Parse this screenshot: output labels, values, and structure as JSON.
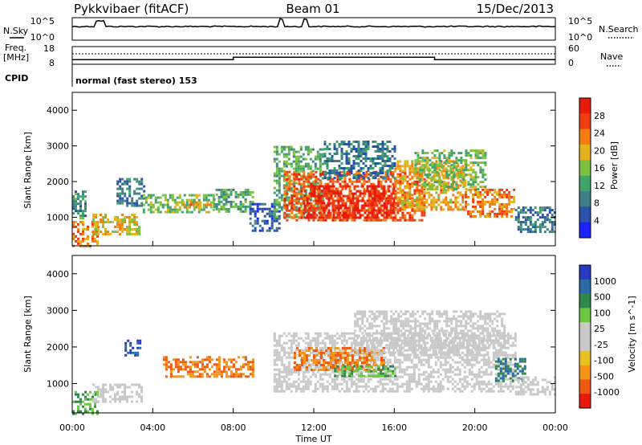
{
  "header": {
    "station": "Pykkvibaer (fitACF)",
    "beam": "Beam 01",
    "date": "15/Dec/2013"
  },
  "top_panels": {
    "nsky_label": "N.Sky",
    "nsearch_label": "N.Search",
    "nsky_ticks": [
      "10^5",
      "10^0"
    ],
    "nsearch_ticks": [
      "10^5",
      "10^0"
    ],
    "freq_label": "Freq.",
    "freq_unit": "[MHz]",
    "freq_ticks": [
      "18",
      "8"
    ],
    "nave_label": "Nave",
    "nave_ticks": [
      "60",
      "0"
    ],
    "cpid_label": "CPID",
    "cpid_text": "normal (fast stereo) 153",
    "freq_segments": [
      {
        "start_h": 0,
        "end_h": 8.0,
        "mhz": 10.6
      },
      {
        "start_h": 8.0,
        "end_h": 18.0,
        "mhz": 12.0
      },
      {
        "start_h": 18.0,
        "end_h": 24,
        "mhz": 10.6
      }
    ]
  },
  "colors": {
    "power_scale": [
      "#1e22ff",
      "#2a52a8",
      "#3c7f86",
      "#3fa46a",
      "#7cc13f",
      "#e4b21c",
      "#f47c10",
      "#ef3e10",
      "#e81a0a"
    ],
    "velocity_scale": [
      "#e81a0a",
      "#f05a10",
      "#f59418",
      "#e8c020",
      "#c8c8c8",
      "#c8c8c8",
      "#6ac840",
      "#2e8a4a",
      "#2a6aa8",
      "#2838c0"
    ],
    "ground_scatter": "#c8c8c8"
  },
  "chart_data": [
    {
      "type": "heatmap",
      "name": "power",
      "x_unit": "hours UT",
      "xlim": [
        0,
        24
      ],
      "ylim": [
        200,
        4500
      ],
      "ylabel": "Slant Range [km]",
      "yticks": [
        1000,
        2000,
        3000,
        4000
      ],
      "colorbar_label": "Power [dB]",
      "colorbar_ticks": [
        28,
        24,
        20,
        16,
        12,
        8,
        4
      ],
      "colorbar_range": [
        0,
        30
      ],
      "regions": [
        {
          "t0": 0.0,
          "t1": 1.2,
          "r0": 200,
          "r1": 900,
          "v": 22
        },
        {
          "t0": 0.0,
          "t1": 0.6,
          "r0": 1000,
          "r1": 1750,
          "v": 10
        },
        {
          "t0": 1.0,
          "t1": 3.3,
          "r0": 550,
          "r1": 1100,
          "v": 18
        },
        {
          "t0": 2.2,
          "t1": 3.6,
          "r0": 1350,
          "r1": 2100,
          "v": 8
        },
        {
          "t0": 3.5,
          "t1": 7.0,
          "r0": 1150,
          "r1": 1650,
          "v": 14
        },
        {
          "t0": 5.0,
          "t1": 6.8,
          "r0": 1250,
          "r1": 1450,
          "v": 20
        },
        {
          "t0": 7.0,
          "t1": 9.0,
          "r0": 1150,
          "r1": 1800,
          "v": 12
        },
        {
          "t0": 8.8,
          "t1": 10.3,
          "r0": 600,
          "r1": 1400,
          "v": 6
        },
        {
          "t0": 10.0,
          "t1": 12.5,
          "r0": 1000,
          "r1": 3000,
          "v": 12
        },
        {
          "t0": 10.5,
          "t1": 17.5,
          "r0": 900,
          "r1": 2300,
          "v": 24
        },
        {
          "t0": 11.5,
          "t1": 16.0,
          "r0": 1000,
          "r1": 1900,
          "v": 28
        },
        {
          "t0": 12.5,
          "t1": 16.0,
          "r0": 2100,
          "r1": 3150,
          "v": 8
        },
        {
          "t0": 16.0,
          "t1": 19.5,
          "r0": 1200,
          "r1": 2600,
          "v": 20
        },
        {
          "t0": 17.0,
          "t1": 20.5,
          "r0": 1800,
          "r1": 2900,
          "v": 14
        },
        {
          "t0": 19.5,
          "t1": 22.0,
          "r0": 1000,
          "r1": 1800,
          "v": 22
        },
        {
          "t0": 22.0,
          "t1": 24.0,
          "r0": 600,
          "r1": 1300,
          "v": 8
        }
      ]
    },
    {
      "type": "heatmap",
      "name": "velocity",
      "x_unit": "hours UT",
      "xlim": [
        0,
        24
      ],
      "ylim": [
        200,
        4500
      ],
      "xlabel": "Time UT",
      "ylabel": "Slant Range [km]",
      "xticks": [
        "00:00",
        "04:00",
        "08:00",
        "12:00",
        "16:00",
        "20:00",
        "00:00"
      ],
      "yticks": [
        1000,
        2000,
        3000,
        4000
      ],
      "colorbar_label": "Velocity [m s^-1]",
      "colorbar_ticks": [
        1000,
        500,
        100,
        25,
        -25,
        -100,
        -500,
        -1000
      ],
      "regions": [
        {
          "t0": 0.0,
          "t1": 1.2,
          "r0": 200,
          "r1": 800,
          "v": 100
        },
        {
          "t0": 1.0,
          "t1": 3.5,
          "r0": 500,
          "r1": 1000,
          "v": 0
        },
        {
          "t0": 2.6,
          "t1": 3.4,
          "r0": 1800,
          "r1": 2200,
          "v": 1000
        },
        {
          "t0": 4.5,
          "t1": 9.0,
          "r0": 1200,
          "r1": 1750,
          "v": -500
        },
        {
          "t0": 10.0,
          "t1": 22.0,
          "r0": 800,
          "r1": 2400,
          "v": 0
        },
        {
          "t0": 11.0,
          "t1": 15.5,
          "r0": 1400,
          "r1": 2000,
          "v": -500
        },
        {
          "t0": 13.0,
          "t1": 16.0,
          "r0": 1200,
          "r1": 1500,
          "v": 100
        },
        {
          "t0": 14.0,
          "t1": 21.5,
          "r0": 1800,
          "r1": 3000,
          "v": 0
        },
        {
          "t0": 21.0,
          "t1": 22.5,
          "r0": 1100,
          "r1": 1700,
          "v": 500
        },
        {
          "t0": 22.0,
          "t1": 24.0,
          "r0": 700,
          "r1": 1200,
          "v": 0
        }
      ]
    }
  ]
}
